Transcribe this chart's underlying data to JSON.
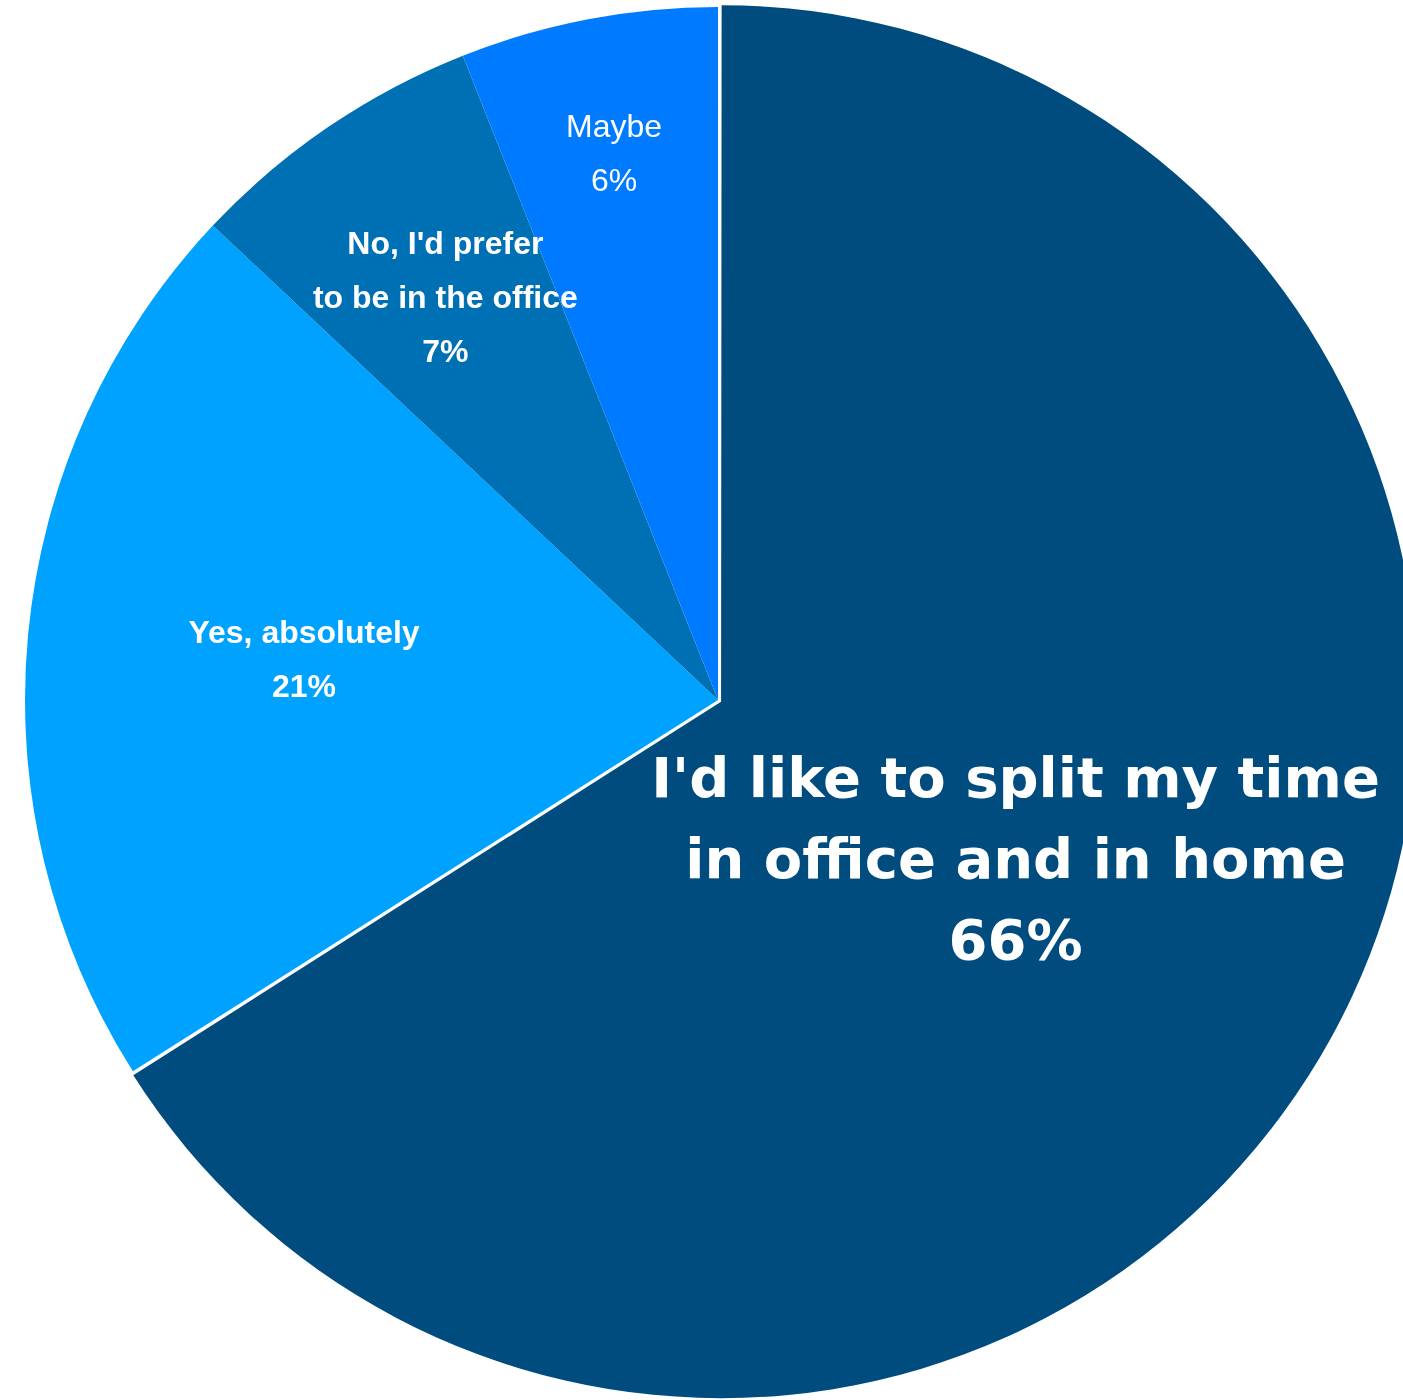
{
  "chart_data": {
    "type": "pie",
    "categories": [
      "I'd like to split my time\nin office and in home",
      "Yes, absolutely",
      "No, I'd prefer\nto be in the office",
      "Maybe"
    ],
    "values": [
      66,
      21,
      7,
      6
    ],
    "colors": [
      "#004c7e",
      "#00a2ff",
      "#0070b5",
      "#007bff"
    ],
    "value_labels": [
      "66%",
      "21%",
      "7%",
      "6%"
    ],
    "legend": false
  }
}
